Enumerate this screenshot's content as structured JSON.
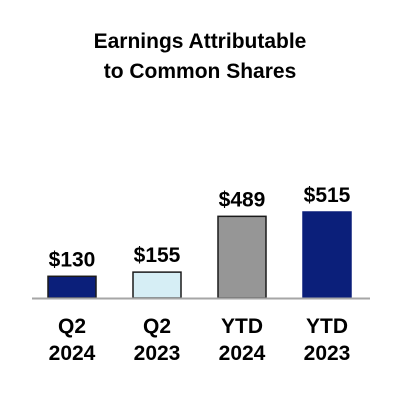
{
  "chart_data": {
    "type": "bar",
    "title_lines": [
      "Earnings Attributable",
      "to Common Shares"
    ],
    "categories": [
      [
        "Q2",
        "2024"
      ],
      [
        "Q2",
        "2023"
      ],
      [
        "YTD",
        "2024"
      ],
      [
        "YTD",
        "2023"
      ]
    ],
    "values": [
      130,
      155,
      489,
      515
    ],
    "data_labels": [
      "$130",
      "$155",
      "$489",
      "$515"
    ],
    "bar_colors": [
      "#0b1f7a",
      "#d6eef5",
      "#969696",
      "#0b1f7a"
    ],
    "bar_strokes": [
      "#1a1a1a",
      "#1a1a1a",
      "#1a1a1a",
      "#0b1f7a"
    ],
    "axis_color": "#a6a6a6",
    "ylim": [
      0,
      600
    ],
    "grid": false,
    "legend": "none"
  }
}
